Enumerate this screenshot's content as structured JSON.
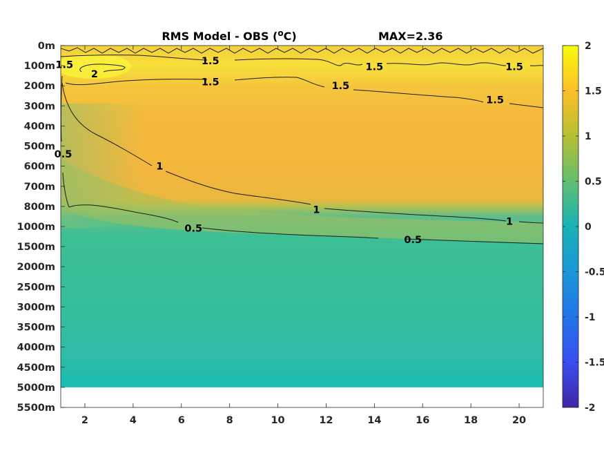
{
  "chart_data": {
    "type": "heatmap",
    "title": "RMS Model - OBS (",
    "title_unit_sup": "o",
    "title_unit": "C)",
    "annotation": "MAX=2.36",
    "xlim": [
      1,
      21
    ],
    "x_ticks": [
      "2",
      "4",
      "6",
      "8",
      "10",
      "12",
      "14",
      "16",
      "18",
      "20"
    ],
    "x_tick_values": [
      2,
      4,
      6,
      8,
      10,
      12,
      14,
      16,
      18,
      20
    ],
    "y_tick_labels": [
      "0m",
      "100m",
      "200m",
      "300m",
      "400m",
      "500m",
      "600m",
      "700m",
      "800m",
      "1000m",
      "1500m",
      "2000m",
      "2500m",
      "3000m",
      "3500m",
      "4000m",
      "4500m",
      "5000m",
      "5500m"
    ],
    "data_bottom_label": "5000m",
    "colorbar": {
      "range": [
        -2,
        2
      ],
      "ticks": [
        "2",
        "1.5",
        "1",
        "0.5",
        "0",
        "-0.5",
        "-1",
        "-1.5",
        "-2"
      ],
      "tick_values": [
        2,
        1.5,
        1,
        0.5,
        0,
        -0.5,
        -1,
        -1.5,
        -2
      ],
      "colormap": "parula"
    },
    "depth_profile": [
      {
        "depth": "0m",
        "value": 1.6
      },
      {
        "depth": "100m",
        "value": 1.85
      },
      {
        "depth": "200m",
        "value": 1.6
      },
      {
        "depth": "300m",
        "value": 1.35
      },
      {
        "depth": "400m",
        "value": 1.3
      },
      {
        "depth": "500m",
        "value": 1.25
      },
      {
        "depth": "600m",
        "value": 1.25
      },
      {
        "depth": "700m",
        "value": 1.2
      },
      {
        "depth": "800m",
        "value": 1.05
      },
      {
        "depth": "1000m",
        "value": 0.45
      },
      {
        "depth": "1500m",
        "value": 0.4
      },
      {
        "depth": "2000m",
        "value": 0.35
      },
      {
        "depth": "2500m",
        "value": 0.35
      },
      {
        "depth": "3000m",
        "value": 0.35
      },
      {
        "depth": "3500m",
        "value": 0.3
      },
      {
        "depth": "4000m",
        "value": 0.28
      },
      {
        "depth": "4500m",
        "value": 0.22
      },
      {
        "depth": "5000m",
        "value": 0.1
      }
    ],
    "contour_labels": [
      {
        "text": "1.5",
        "x": 7.2,
        "depth": "75m"
      },
      {
        "text": "1.5",
        "x": 14.0,
        "depth": "105m"
      },
      {
        "text": "1.5",
        "x": 19.8,
        "depth": "105m"
      },
      {
        "text": "2",
        "x": 2.4,
        "depth": "140m"
      },
      {
        "text": "1.5",
        "x": 1.15,
        "depth": "95m"
      },
      {
        "text": "1.5",
        "x": 7.2,
        "depth": "180m"
      },
      {
        "text": "1.5",
        "x": 12.6,
        "depth": "200m"
      },
      {
        "text": "1.5",
        "x": 19.0,
        "depth": "270m"
      },
      {
        "text": "0.5",
        "x": 1.1,
        "depth": "540m"
      },
      {
        "text": "1",
        "x": 5.1,
        "depth": "600m"
      },
      {
        "text": "1",
        "x": 11.6,
        "depth": "830m"
      },
      {
        "text": "1",
        "x": 19.6,
        "depth": "950m"
      },
      {
        "text": "0.5",
        "x": 6.5,
        "depth": "1040m"
      },
      {
        "text": "0.5",
        "x": 15.6,
        "depth": "1330m"
      }
    ]
  }
}
